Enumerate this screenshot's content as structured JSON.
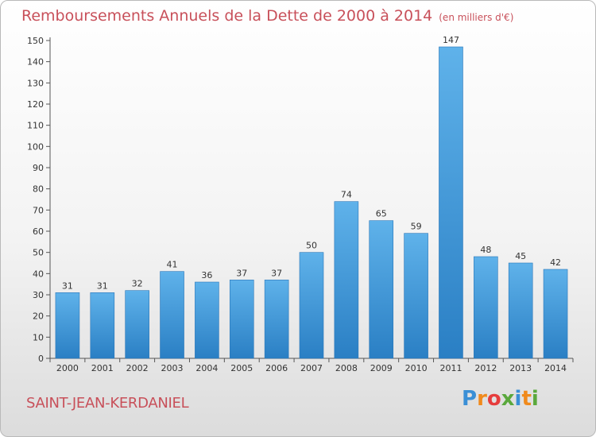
{
  "header": {
    "title": "Remboursements Annuels de la Dette de 2000 à 2014",
    "unit": "(en milliers d'€)"
  },
  "footer": {
    "location": "SAINT-JEAN-KERDANIEL",
    "brand_letters": [
      "P",
      "r",
      "o",
      "x",
      "i",
      "t",
      "i"
    ]
  },
  "colors": {
    "title": "#c8505a",
    "bar_light": "#5fb2ea",
    "bar_dark": "#2a7fc4",
    "brand": [
      "#3a8fd6",
      "#f08a1c",
      "#e63d3d",
      "#5aa83c",
      "#3a8fd6",
      "#f08a1c",
      "#5aa83c"
    ]
  },
  "chart_data": {
    "type": "bar",
    "title": "Remboursements Annuels de la Dette de 2000 à 2014",
    "xlabel": "",
    "ylabel": "",
    "categories": [
      "2000",
      "2001",
      "2002",
      "2003",
      "2004",
      "2005",
      "2006",
      "2007",
      "2008",
      "2009",
      "2010",
      "2011",
      "2012",
      "2013",
      "2014"
    ],
    "values": [
      31,
      31,
      32,
      41,
      36,
      37,
      37,
      50,
      74,
      65,
      59,
      147,
      48,
      45,
      42
    ],
    "ylim": [
      0,
      150
    ],
    "yticks": [
      0,
      10,
      20,
      30,
      40,
      50,
      60,
      70,
      80,
      90,
      100,
      110,
      120,
      130,
      140,
      150
    ],
    "grid": false
  }
}
